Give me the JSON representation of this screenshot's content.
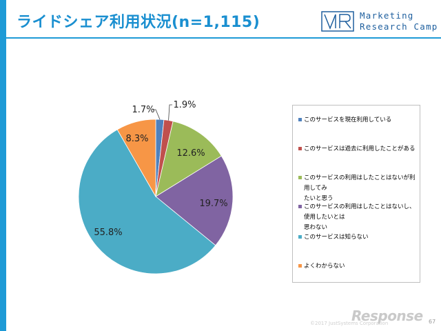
{
  "header": {
    "title": "ライドシェア利用状況(n=1,115)",
    "logo_line1": "Marketing",
    "logo_line2": "Research Camp"
  },
  "chart_data": {
    "type": "pie",
    "categories": [
      "このサービスを現在利用している",
      "このサービスは過去に利用したことがある",
      "このサービスの利用はしたことはないが利用してみたいと思う",
      "このサービスの利用はしたことはないし、使用したいとは思わない",
      "このサービスは知らない",
      "よくわからない"
    ],
    "values": [
      1.7,
      1.9,
      12.6,
      19.7,
      55.8,
      8.3
    ],
    "data_labels": [
      "1.7%",
      "1.9%",
      "12.6%",
      "19.7%",
      "55.8%",
      "8.3%"
    ],
    "colors": [
      "#4f81bd",
      "#c0504d",
      "#9bbb59",
      "#8064a2",
      "#4bacc6",
      "#f79646"
    ],
    "legend_placement": "right"
  },
  "legend": {
    "items": [
      {
        "lines": [
          "このサービスを現在利用している"
        ],
        "color": "#4f81bd"
      },
      {
        "lines": [
          "このサービスは過去に利用したことがある"
        ],
        "color": "#c0504d"
      },
      {
        "lines": [
          "このサービスの利用はしたことはないが利用してみ",
          "たいと思う"
        ],
        "color": "#9bbb59"
      },
      {
        "lines": [
          "このサービスの利用はしたことはないし、使用したいとは",
          "思わない"
        ],
        "color": "#8064a2"
      },
      {
        "lines": [
          "このサービスは知らない"
        ],
        "color": "#4bacc6"
      },
      {
        "lines": [
          "よくわからない"
        ],
        "color": "#f79646"
      }
    ]
  },
  "footer": {
    "brand": "Response",
    "copyright": "©2017 JustSystems Corporation",
    "page_number": "67"
  }
}
